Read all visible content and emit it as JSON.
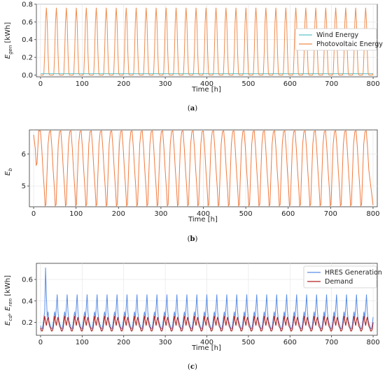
{
  "colors": {
    "wind": "#5cc3c9",
    "pv": "#f08a4b",
    "eb": "#f07a3e",
    "hres": "#5b8ee6",
    "demand": "#b22222"
  },
  "captions": {
    "a": "a",
    "b": "b",
    "c": "c"
  },
  "chart_data": [
    {
      "id": "a",
      "type": "line",
      "xlabel": "Time [h]",
      "ylabel": "E_gen [kWh]",
      "ylabel_main": "E",
      "ylabel_sub": "gen",
      "ylabel_unit": " [kWh]",
      "xlim": [
        -10,
        810
      ],
      "ylim": [
        -0.02,
        0.8
      ],
      "xticks": [
        0,
        100,
        200,
        300,
        400,
        500,
        600,
        700,
        800
      ],
      "yticks": [
        "0.0",
        "0.2",
        "0.4",
        "0.6",
        "0.8"
      ],
      "grid": true,
      "legend": "center-right",
      "period_h": 24,
      "samples_x": [
        0,
        2,
        4,
        6,
        8,
        10,
        12,
        14,
        16,
        18,
        20,
        22,
        24
      ],
      "series": [
        {
          "name": "Wind Energy",
          "color_key": "wind",
          "values": [
            0.015,
            0.015,
            0.015,
            0.015,
            0.015,
            0.015,
            0.015,
            0.015,
            0.015,
            0.015,
            0.015,
            0.015,
            0.015
          ]
        },
        {
          "name": "Photovoltaic Energy",
          "color_key": "pv",
          "values": [
            0.0,
            0.0,
            0.0,
            0.0,
            0.02,
            0.25,
            0.6,
            0.76,
            0.6,
            0.25,
            0.02,
            0.0,
            0.0
          ]
        }
      ]
    },
    {
      "id": "b",
      "type": "line",
      "xlabel": "Time [h]",
      "ylabel_main": "E",
      "ylabel_sub": "b",
      "ylabel_unit": "",
      "xlim": [
        -10,
        810
      ],
      "ylim": [
        4.35,
        6.75
      ],
      "xticks": [
        0,
        100,
        200,
        300,
        400,
        500,
        600,
        700,
        800
      ],
      "yticks": [
        "5",
        "6"
      ],
      "ytick_values": [
        5,
        6
      ],
      "grid": true,
      "series": [
        {
          "name": "",
          "color_key": "eb",
          "start": [
            [
              0,
              6.6
            ],
            [
              4,
              6.15
            ],
            [
              6,
              5.65
            ],
            [
              8,
              5.7
            ],
            [
              12,
              6.72
            ],
            [
              16,
              6.72
            ]
          ],
          "period_h": 24,
          "cycle_x": [
            0,
            3,
            6,
            9,
            11,
            13,
            15,
            18,
            21,
            24
          ],
          "cycle_y": [
            6.72,
            6.2,
            5.5,
            4.9,
            4.38,
            4.42,
            5.2,
            6.3,
            6.7,
            6.72
          ],
          "end_x": 800,
          "end_y": 4.4
        }
      ]
    },
    {
      "id": "c",
      "type": "line",
      "xlabel": "Time [h]",
      "ylabel_main": "E",
      "ylabel_sub": "cd",
      "ylabel_main2": "E",
      "ylabel_sub2": "ren",
      "ylabel_unit": " [kWh]",
      "xlim": [
        -10,
        810
      ],
      "ylim": [
        0.08,
        0.75
      ],
      "xticks": [
        0,
        100,
        200,
        300,
        400,
        500,
        600,
        700,
        800
      ],
      "yticks": [
        "0.2",
        "0.4",
        "0.6"
      ],
      "ytick_values": [
        0.2,
        0.4,
        0.6
      ],
      "grid": true,
      "legend": "top-right",
      "period_h": 24,
      "samples_x": [
        0,
        2,
        4,
        6,
        8,
        10,
        12,
        14,
        16,
        18,
        20,
        22,
        24
      ],
      "series": [
        {
          "name": "HRES Generation",
          "color_key": "hres",
          "values": [
            0.17,
            0.14,
            0.14,
            0.18,
            0.25,
            0.3,
            0.24,
            0.34,
            0.46,
            0.3,
            0.22,
            0.19,
            0.17
          ],
          "spike_x": [
            8,
            10,
            12,
            14,
            16
          ],
          "spike_y": [
            0.25,
            0.3,
            0.71,
            0.45,
            0.25
          ]
        },
        {
          "name": "Demand",
          "color_key": "demand",
          "values": [
            0.15,
            0.12,
            0.12,
            0.14,
            0.2,
            0.26,
            0.21,
            0.17,
            0.22,
            0.25,
            0.2,
            0.16,
            0.15
          ]
        }
      ]
    }
  ]
}
